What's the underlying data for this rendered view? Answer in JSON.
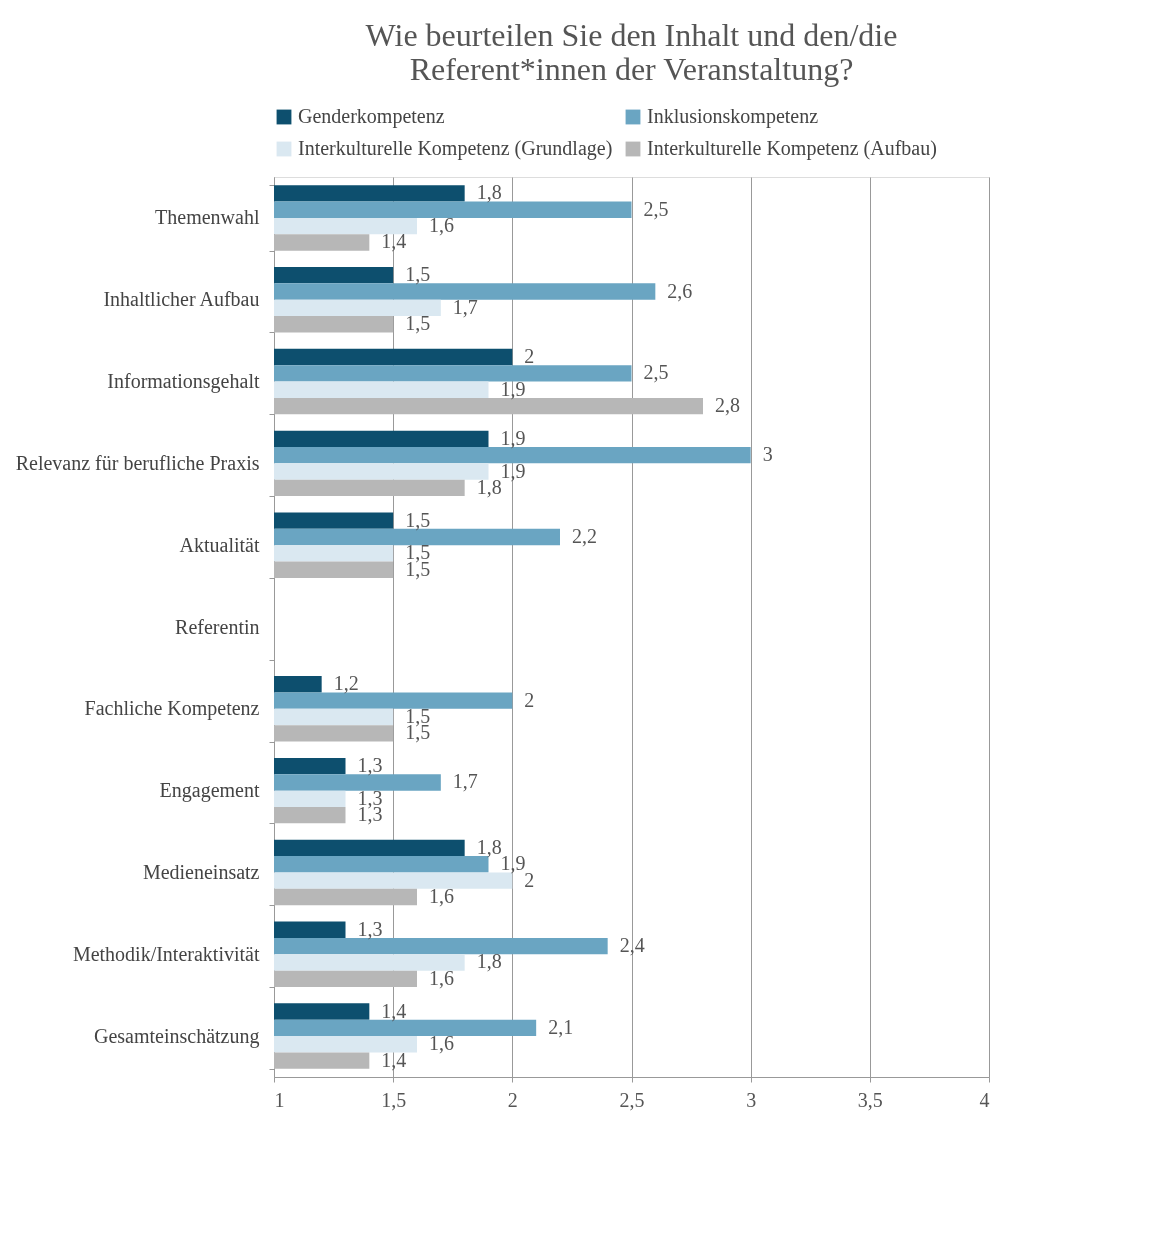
{
  "chart_data": {
    "type": "bar",
    "orientation": "horizontal",
    "title": "Wie beurteilen Sie den Inhalt und den/die Referent*innen der Veranstaltung?",
    "categories": [
      "Themenwahl",
      "Inhaltlicher Aufbau",
      "Informationsgehalt",
      "Relevanz für berufliche Praxis",
      "Aktualität",
      "Referentin",
      "Fachliche Kompetenz",
      "Engagement",
      "Medieneinsatz",
      "Methodik/Interaktivität",
      "Gesamteinschätzung"
    ],
    "series": [
      {
        "name": "Genderkompetenz",
        "color": "#0d4f6e",
        "values": [
          1.8,
          1.5,
          2,
          1.9,
          1.5,
          null,
          1.2,
          1.3,
          1.8,
          1.3,
          1.4
        ],
        "value_labels": [
          "1,8",
          "1,5",
          "2",
          "1,9",
          "1,5",
          null,
          "1,2",
          "1,3",
          "1,8",
          "1,3",
          "1,4"
        ]
      },
      {
        "name": "Inklusionskompetenz",
        "color": "#6aa5c2",
        "values": [
          2.5,
          2.6,
          2.5,
          3,
          2.2,
          null,
          2,
          1.7,
          1.9,
          2.4,
          2.1
        ],
        "value_labels": [
          "2,5",
          "2,6",
          "2,5",
          "3",
          "2,2",
          null,
          "2",
          "1,7",
          "1,9",
          "2,4",
          "2,1"
        ]
      },
      {
        "name": "Interkulturelle Kompetenz (Grundlage)",
        "color": "#dae8f1",
        "values": [
          1.6,
          1.7,
          1.9,
          1.9,
          1.5,
          null,
          1.5,
          1.3,
          2,
          1.8,
          1.6
        ],
        "value_labels": [
          "1,6",
          "1,7",
          "1,9",
          "1,9",
          "1,5",
          null,
          "1,5",
          "1,3",
          "2",
          "1,8",
          "1,6"
        ]
      },
      {
        "name": "Interkulturelle Kompetenz (Aufbau)",
        "color": "#b7b7b7",
        "values": [
          1.4,
          1.5,
          2.8,
          1.8,
          1.5,
          null,
          1.5,
          1.3,
          1.6,
          1.6,
          1.4
        ],
        "value_labels": [
          "1,4",
          "1,5",
          "2,8",
          "1,8",
          "1,5",
          null,
          "1,5",
          "1,3",
          "1,6",
          "1,6",
          "1,4"
        ]
      }
    ],
    "xlim": [
      1,
      4
    ],
    "xticks": [
      1,
      {
        "value": 1.5,
        "label": "1,5"
      },
      2,
      {
        "value": 2.5,
        "label": "2,5"
      },
      3,
      {
        "value": 3.5,
        "label": "3,5"
      },
      4
    ],
    "grid": "x",
    "legend": "top"
  }
}
